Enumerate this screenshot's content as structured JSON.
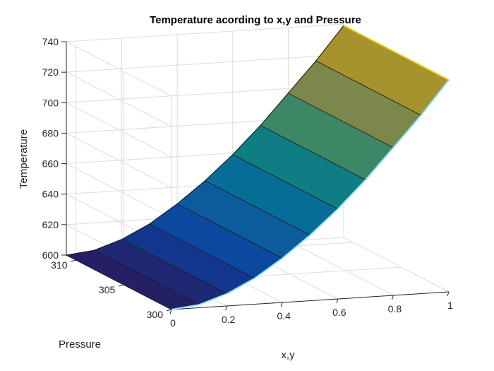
{
  "chart_data": {
    "type": "surface",
    "title": "Temperature acording to x,y and Pressure",
    "xlabel": "x,y",
    "ylabel": "Pressure",
    "zlabel": "Temperature",
    "xlim": [
      0,
      1
    ],
    "ylim": [
      300,
      311
    ],
    "zlim": [
      600,
      740
    ],
    "xticks": [
      "0",
      "0.2",
      "0.4",
      "0.6",
      "0.8",
      "1"
    ],
    "yticks": [
      "300",
      "305",
      "310"
    ],
    "zticks": [
      "600",
      "620",
      "640",
      "660",
      "680",
      "700",
      "720",
      "740"
    ],
    "grid": true,
    "colormap": "parula",
    "x": [
      0,
      0.1,
      0.2,
      0.3,
      0.4,
      0.5,
      0.6,
      0.7,
      0.8,
      0.9,
      1.0
    ],
    "pressure": [
      300,
      311
    ],
    "temperature_at_p300": [
      600,
      602,
      608,
      617,
      629,
      643,
      659,
      677,
      697,
      717,
      739
    ],
    "temperature_at_p311": [
      600,
      602,
      608,
      617,
      629,
      643,
      659,
      677,
      697,
      717,
      739
    ]
  }
}
